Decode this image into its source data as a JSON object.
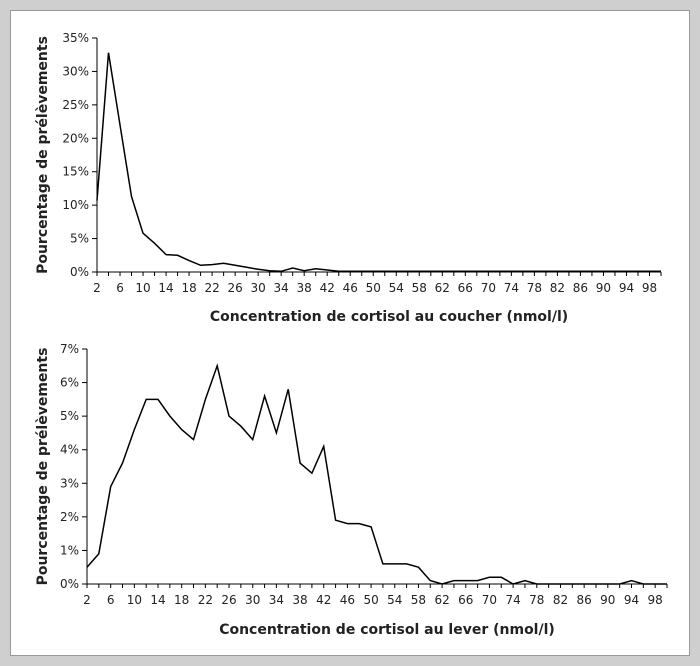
{
  "chart_data": [
    {
      "type": "line",
      "ylabel": "Pourcentage de prélèvements",
      "xlabel": "Concentration de cortisol au coucher (nmol/l)",
      "ylim": [
        0,
        35
      ],
      "yticks": [
        "0%",
        "5%",
        "10%",
        "15%",
        "20%",
        "25%",
        "30%",
        "35%"
      ],
      "xlim": [
        2,
        100
      ],
      "xticks": [
        "2",
        "6",
        "10",
        "14",
        "18",
        "22",
        "26",
        "30",
        "34",
        "38",
        "42",
        "46",
        "50",
        "54",
        "58",
        "62",
        "66",
        "70",
        "74",
        "78",
        "82",
        "86",
        "90",
        "94",
        "98"
      ],
      "series": [
        {
          "x": [
            2,
            4,
            6,
            8,
            10,
            12,
            14,
            16,
            18,
            20,
            22,
            24,
            26,
            28,
            30,
            32,
            34,
            36,
            38,
            40,
            42,
            44,
            46,
            48,
            50,
            52,
            54,
            56,
            58,
            60,
            62,
            64,
            66,
            68,
            70,
            72,
            74,
            76,
            78,
            80,
            82,
            84,
            86,
            88,
            90,
            92,
            94,
            96,
            98,
            100
          ],
          "values": [
            10.7,
            32.8,
            22,
            11.3,
            5.8,
            4.3,
            2.6,
            2.5,
            1.7,
            1,
            1.1,
            1.3,
            1,
            0.7,
            0.4,
            0.2,
            0.1,
            0.6,
            0.2,
            0.5,
            0.3,
            0.1,
            0.1,
            0.1,
            0.1,
            0.1,
            0.1,
            0.1,
            0.1,
            0.1,
            0.1,
            0.1,
            0.1,
            0.1,
            0.1,
            0.1,
            0.1,
            0.1,
            0.1,
            0.1,
            0.1,
            0.1,
            0.1,
            0.1,
            0.1,
            0.1,
            0.1,
            0.1,
            0.1,
            0.1
          ]
        }
      ]
    },
    {
      "type": "line",
      "ylabel": "Pourcentage de prélèvements",
      "xlabel": "Concentration de cortisol au lever (nmol/l)",
      "ylim": [
        0,
        7
      ],
      "yticks": [
        "0%",
        "1%",
        "2%",
        "3%",
        "4%",
        "5%",
        "6%",
        "7%"
      ],
      "xlim": [
        2,
        100
      ],
      "xticks": [
        "2",
        "6",
        "10",
        "14",
        "18",
        "22",
        "26",
        "30",
        "34",
        "38",
        "42",
        "46",
        "50",
        "54",
        "58",
        "62",
        "66",
        "70",
        "74",
        "78",
        "82",
        "86",
        "90",
        "94",
        "98"
      ],
      "series": [
        {
          "x": [
            2,
            4,
            6,
            8,
            10,
            12,
            14,
            16,
            18,
            20,
            22,
            24,
            26,
            28,
            30,
            32,
            34,
            36,
            38,
            40,
            42,
            44,
            46,
            48,
            50,
            52,
            54,
            56,
            58,
            60,
            62,
            64,
            66,
            68,
            70,
            72,
            74,
            76,
            78,
            80,
            82,
            84,
            86,
            88,
            90,
            92,
            94,
            96,
            98,
            100
          ],
          "values": [
            0.5,
            0.9,
            2.9,
            3.6,
            4.6,
            5.5,
            5.5,
            5,
            4.6,
            4.3,
            5.5,
            6.5,
            5,
            4.7,
            4.3,
            5.6,
            4.5,
            5.8,
            3.6,
            3.3,
            4.1,
            1.9,
            1.8,
            1.8,
            1.7,
            0.6,
            0.6,
            0.6,
            0.5,
            0.1,
            0,
            0.1,
            0.1,
            0.1,
            0.2,
            0.2,
            0,
            0.1,
            0,
            0,
            0,
            0,
            0,
            0,
            0,
            0,
            0.1,
            0,
            0,
            0
          ]
        }
      ]
    }
  ]
}
